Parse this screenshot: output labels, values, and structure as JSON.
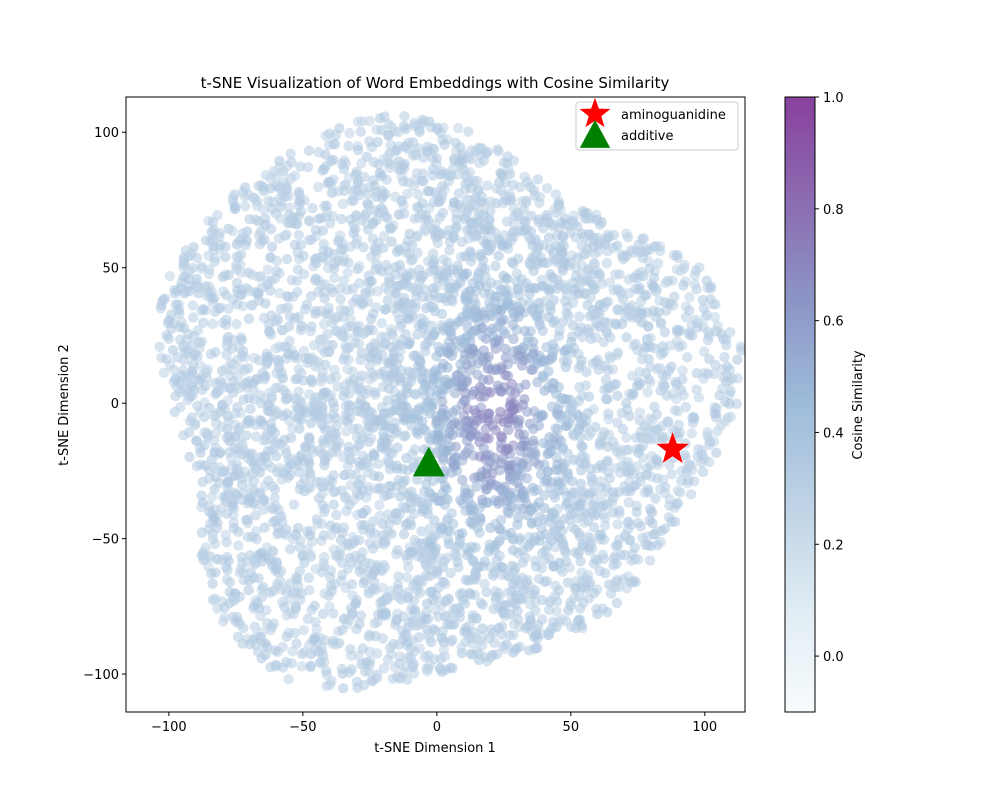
{
  "chart_data": {
    "type": "scatter",
    "title": "t-SNE Visualization of Word Embeddings with Cosine Similarity",
    "xlabel": "t-SNE Dimension 1",
    "ylabel": "t-SNE Dimension 2",
    "xlim": [
      -116,
      115
    ],
    "ylim": [
      -114,
      113
    ],
    "xticks": [
      -100,
      -50,
      0,
      50,
      100
    ],
    "xtick_labels": [
      "−100",
      "−50",
      "0",
      "50",
      "100"
    ],
    "yticks": [
      -100,
      -50,
      0,
      50,
      100
    ],
    "ytick_labels": [
      "−100",
      "−50",
      "0",
      "50",
      "100"
    ],
    "grid": false,
    "legend_position": "top-right",
    "colorbar": {
      "label": "Cosine Similarity",
      "range": [
        -0.1,
        1.0
      ],
      "ticks": [
        0.0,
        0.2,
        0.4,
        0.6,
        0.8,
        1.0
      ],
      "tick_labels": [
        "0.0",
        "0.2",
        "0.4",
        "0.6",
        "0.8",
        "1.0"
      ],
      "colormap": "BuPu",
      "colors": [
        "#f7fcfd",
        "#e0ecf4",
        "#bfd3e6",
        "#9ebcda",
        "#8c96c6",
        "#8c6bb1",
        "#88419d"
      ]
    },
    "point_cloud": {
      "description_visible": false,
      "cluster_center": [
        0,
        0
      ],
      "x_extent": [
        -107,
        104
      ],
      "y_extent": [
        -103,
        102
      ],
      "high_similarity_region": [
        22,
        -5
      ],
      "base_similarity": 0.32,
      "peak_similarity": 0.7
    },
    "highlights": [
      {
        "name": "aminoguanidine",
        "x": 88,
        "y": -17,
        "marker": "star",
        "color": "#ff0000"
      },
      {
        "name": "additive",
        "x": -3,
        "y": -22,
        "marker": "triangle",
        "color": "#008000"
      }
    ]
  }
}
